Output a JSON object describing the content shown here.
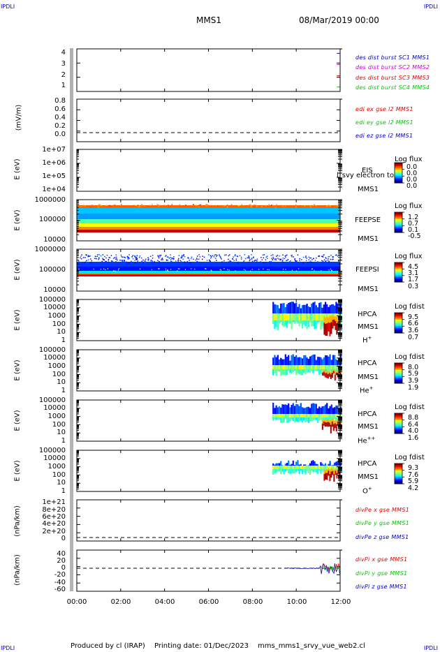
{
  "corners": {
    "tl": "IPDLI",
    "tr": "IPDLI",
    "bl": "IPDLI",
    "br": "IPDLI"
  },
  "header": {
    "spacecraft": "MMS1",
    "date": "08/Mar/2019 00:00"
  },
  "footer": {
    "produced": "Produced by cl (IRAP)",
    "printing": "Printing date: 01/Dec/2023",
    "file": "mms_mms1_srvy_vue_web2.cl"
  },
  "colors": {
    "red": "#e00000",
    "magenta": "#d000d0",
    "green": "#00c800",
    "blue": "#0000c8"
  },
  "chart_data": [
    {
      "type": "scatter",
      "ylabel": "",
      "yticks": [
        "4",
        "3",
        "2",
        "1"
      ],
      "ylim": [
        0.6,
        4.4
      ],
      "legend": [
        "des dist burst SC1 MMS1",
        "des dist burst SC2 MMS2",
        "des dist burst SC3 MMS3",
        "des dist burst SC4 MMS4"
      ],
      "series": [
        {
          "x": [
            "11:55"
          ],
          "y": [
            4
          ]
        },
        {
          "x": [
            "11:55"
          ],
          "y": [
            3
          ]
        },
        {
          "x": [
            "11:55"
          ],
          "y": [
            2
          ]
        },
        {
          "x": [
            "11:55"
          ],
          "y": [
            1
          ]
        }
      ]
    },
    {
      "type": "line",
      "ylabel": "(mV/m)",
      "yticks": [
        "0.8",
        "0.6",
        "0.4",
        "0.2",
        "0.0"
      ],
      "ylim": [
        -0.1,
        0.85
      ],
      "legend": [
        "edi ex gse l2 MMS1",
        "edi ey gse l2 MMS1",
        "edi ez gse l2 MMS1"
      ],
      "zero_line": true
    },
    {
      "type": "heatmap",
      "ylabel": "E (eV)",
      "yticks": [
        "1e+07",
        "1e+06",
        "1e+05",
        "1e+04"
      ],
      "name": "EIS",
      "name2": "MMS1",
      "overlay": "l_svy electron to",
      "cbar": {
        "title": "Log flux",
        "ticks": [
          "0.0",
          "0.0",
          "0.0",
          "0.0"
        ]
      }
    },
    {
      "type": "heatmap",
      "ylabel": "E (eV)",
      "yticks": [
        "1000000",
        "100000",
        "10000"
      ],
      "name": "FEEPSE",
      "name2": "MMS1",
      "cbar": {
        "title": "Log flux",
        "ticks": [
          "1.2",
          "0.7",
          "0.1",
          "-0.5"
        ]
      }
    },
    {
      "type": "heatmap",
      "ylabel": "E (eV)",
      "yticks": [
        "1000000",
        "100000",
        "10000"
      ],
      "name": "FEEPSI",
      "name2": "MMS1",
      "cbar": {
        "title": "Log flux",
        "ticks": [
          "4.5",
          "3.1",
          "1.7",
          "0.3"
        ]
      }
    },
    {
      "type": "heatmap",
      "ylabel": "E (eV)",
      "yticks": [
        "100000",
        "10000",
        "1000",
        "100",
        "10",
        "1"
      ],
      "name": "HPCA",
      "name2": "MMS1",
      "species": "H",
      "charge": "+",
      "cbar": {
        "title": "Log fdist",
        "ticks": [
          "9.5",
          "6.6",
          "3.6",
          "0.7"
        ]
      }
    },
    {
      "type": "heatmap",
      "ylabel": "E (eV)",
      "yticks": [
        "100000",
        "10000",
        "1000",
        "100",
        "10",
        "1"
      ],
      "name": "HPCA",
      "name2": "MMS1",
      "species": "He",
      "charge": "+",
      "cbar": {
        "title": "Log fdist",
        "ticks": [
          "8.0",
          "5.9",
          "3.9",
          "1.9"
        ]
      }
    },
    {
      "type": "heatmap",
      "ylabel": "E (eV)",
      "yticks": [
        "100000",
        "10000",
        "1000",
        "100",
        "10",
        "1"
      ],
      "name": "HPCA",
      "name2": "MMS1",
      "species": "He",
      "charge": "++",
      "cbar": {
        "title": "Log fdist",
        "ticks": [
          "8.8",
          "6.4",
          "4.0",
          "1.6"
        ]
      }
    },
    {
      "type": "heatmap",
      "ylabel": "E (eV)",
      "yticks": [
        "100000",
        "10000",
        "1000",
        "100",
        "10",
        "1"
      ],
      "name": "HPCA",
      "name2": "MMS1",
      "species": "O",
      "charge": "+",
      "cbar": {
        "title": "Log fdist",
        "ticks": [
          "9.3",
          "7.6",
          "5.9",
          "4.2"
        ]
      }
    },
    {
      "type": "line",
      "ylabel": "(nPa/km)",
      "yticks": [
        "1e+21",
        "8e+20",
        "6e+20",
        "4e+20",
        "2e+20",
        "0"
      ],
      "ylim": [
        -5e+19,
        1.05e+21
      ],
      "legend": [
        "divPe x gse MMS1",
        "divPe y gse MMS1",
        "divPe z gse MMS1"
      ],
      "zero_line": true
    },
    {
      "type": "line",
      "ylabel": "(nPa/km)",
      "yticks": [
        "40",
        "20",
        "0",
        "-20",
        "-40",
        "-60"
      ],
      "ylim": [
        -65,
        50
      ],
      "legend": [
        "divPi x gse MMS1",
        "divPi y gse MMS1",
        "divPi z gse MMS1"
      ],
      "zero_line": true
    }
  ],
  "xaxis": {
    "ticks": [
      "00:00",
      "02:00",
      "04:00",
      "06:00",
      "08:00",
      "10:00",
      "12:00"
    ],
    "range": [
      "00:00",
      "12:00"
    ]
  }
}
